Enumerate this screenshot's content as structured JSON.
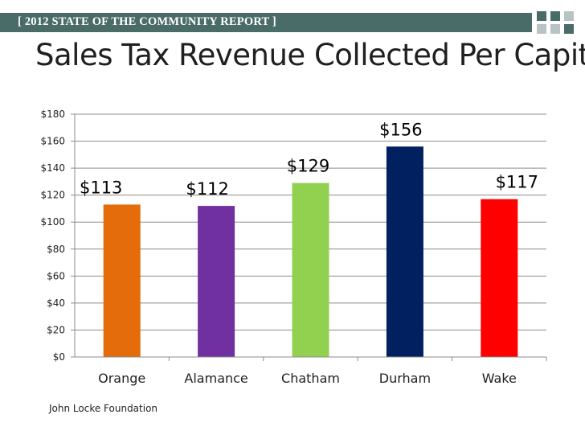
{
  "header": {
    "banner_text": "[ 2012 STATE OF THE COMMUNITY REPORT ]",
    "banner_color": "#4a6c69",
    "square_dark": "#4a6c69",
    "square_light": "#b7c4c3"
  },
  "footer": {
    "source": "John Locke Foundation"
  },
  "chart_data": {
    "type": "bar",
    "title": "Sales Tax Revenue Collected Per Capita",
    "xlabel": "",
    "ylabel": "",
    "categories": [
      "Orange",
      "Alamance",
      "Chatham",
      "Durham",
      "Wake"
    ],
    "values": [
      113,
      112,
      129,
      156,
      117
    ],
    "data_labels": [
      "$113",
      "$112",
      "$129",
      "$156",
      "$117"
    ],
    "colors": [
      "#e46c0a",
      "#7030a0",
      "#92d050",
      "#002060",
      "#ff0000"
    ],
    "ylim": [
      0,
      180
    ],
    "yticks": [
      0,
      20,
      40,
      60,
      80,
      100,
      120,
      140,
      160,
      180
    ],
    "ytick_labels": [
      "$0",
      "$20",
      "$40",
      "$60",
      "$80",
      "$100",
      "$120",
      "$140",
      "$160",
      "$180"
    ],
    "grid": true,
    "legend": "none"
  }
}
